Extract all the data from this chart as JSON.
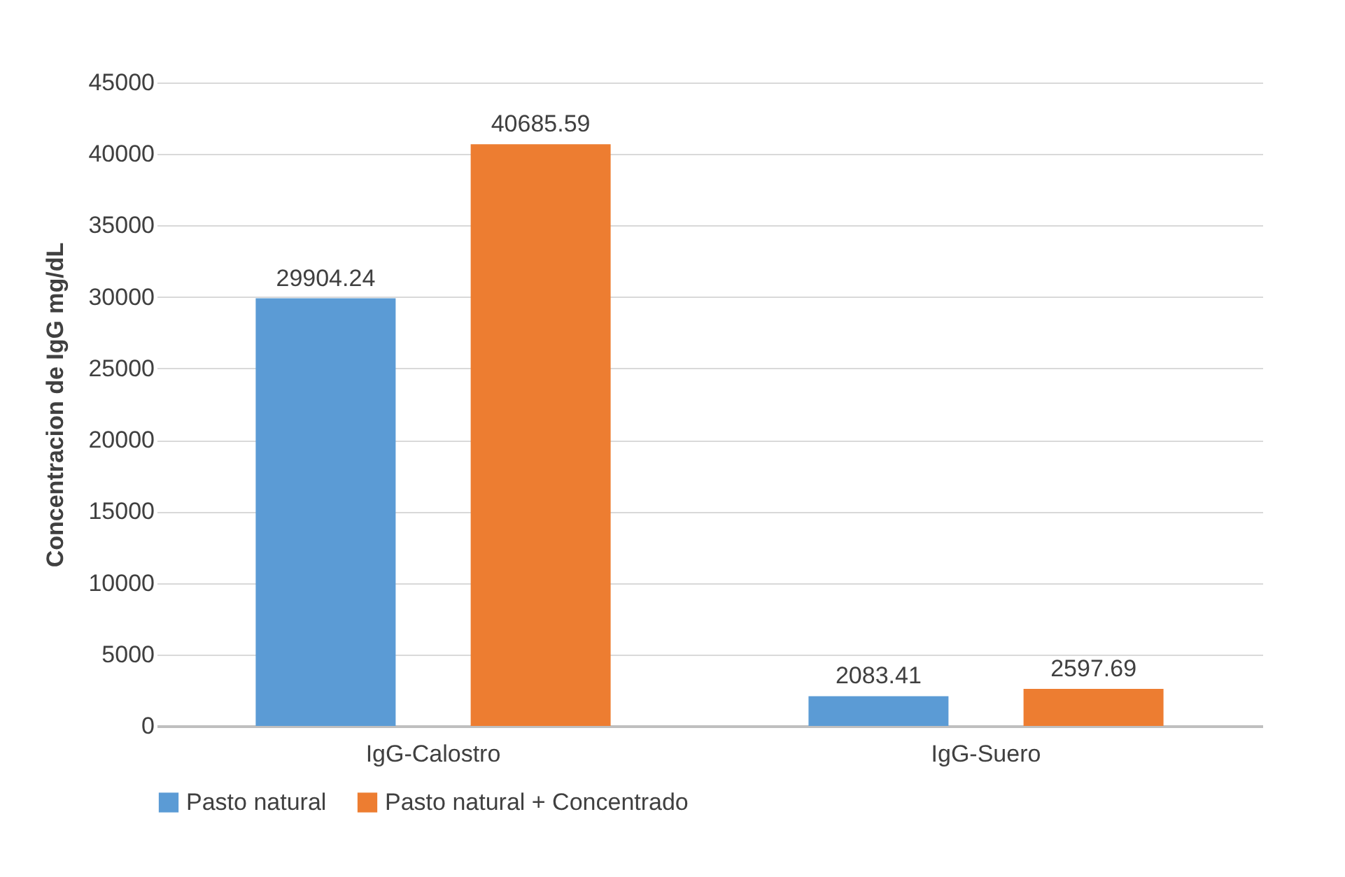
{
  "chart_data": {
    "type": "bar",
    "ylabel": "Concentracion de IgG mg/dL",
    "categories": [
      "IgG-Calostro",
      "IgG-Suero"
    ],
    "series": [
      {
        "name": "Pasto natural",
        "color": "#5b9bd5",
        "values": [
          29904.24,
          2083.41
        ]
      },
      {
        "name": "Pasto natural + Concentrado",
        "color": "#ed7d31",
        "values": [
          40685.59,
          2597.69
        ]
      }
    ],
    "ylim": [
      0,
      45000
    ],
    "yticks": [
      0,
      5000,
      10000,
      15000,
      20000,
      25000,
      30000,
      35000,
      40000,
      45000
    ],
    "grid": "y",
    "legend": "bottom",
    "data_labels": true
  }
}
